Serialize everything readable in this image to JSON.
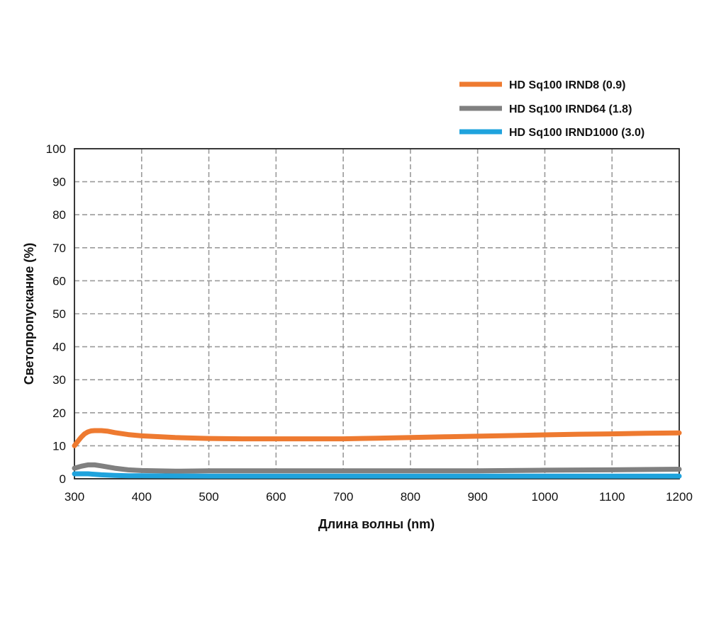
{
  "chart_data": {
    "type": "line",
    "xlabel": "Длина волны (nm)",
    "ylabel": "Светопропускание (%)",
    "xlim": [
      300,
      1200
    ],
    "ylim": [
      0,
      100
    ],
    "x_ticks": [
      "300",
      "400",
      "500",
      "600",
      "700",
      "800",
      "900",
      "1000",
      "1100",
      "1200"
    ],
    "y_ticks": [
      "0",
      "10",
      "20",
      "30",
      "40",
      "50",
      "60",
      "70",
      "80",
      "90",
      "100"
    ],
    "grid": true,
    "legend_position": "top-right",
    "series": [
      {
        "name": "HD Sq100 IRND8 (0.9)",
        "color": "#ee7a30",
        "x": [
          300,
          305,
          310,
          315,
          320,
          325,
          330,
          340,
          350,
          360,
          380,
          400,
          450,
          500,
          550,
          600,
          650,
          700,
          750,
          800,
          850,
          900,
          950,
          1000,
          1050,
          1100,
          1150,
          1200
        ],
        "y": [
          10,
          11.3,
          12.6,
          13.6,
          14.2,
          14.5,
          14.6,
          14.6,
          14.4,
          14.0,
          13.4,
          13.0,
          12.5,
          12.2,
          12.1,
          12.1,
          12.1,
          12.1,
          12.3,
          12.5,
          12.7,
          12.9,
          13.1,
          13.3,
          13.5,
          13.6,
          13.8,
          13.9
        ]
      },
      {
        "name": "HD Sq100 IRND64 (1.8)",
        "color": "#808080",
        "x": [
          300,
          310,
          320,
          330,
          340,
          360,
          380,
          400,
          450,
          500,
          600,
          700,
          800,
          900,
          1000,
          1100,
          1200
        ],
        "y": [
          3.2,
          3.8,
          4.2,
          4.2,
          3.9,
          3.2,
          2.7,
          2.5,
          2.3,
          2.4,
          2.4,
          2.4,
          2.4,
          2.4,
          2.6,
          2.7,
          2.9
        ]
      },
      {
        "name": "HD Sq100 IRND1000 (3.0)",
        "color": "#1fa3dd",
        "x": [
          300,
          320,
          340,
          360,
          380,
          400,
          500,
          600,
          700,
          800,
          900,
          1000,
          1100,
          1200
        ],
        "y": [
          1.5,
          1.5,
          1.2,
          1.0,
          0.9,
          0.9,
          0.8,
          0.8,
          0.8,
          0.8,
          0.8,
          0.8,
          0.8,
          0.8
        ]
      }
    ]
  }
}
